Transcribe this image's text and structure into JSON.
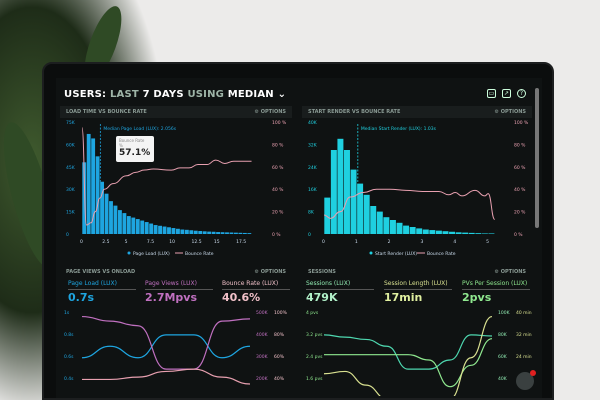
{
  "header": {
    "prefix": "USERS:",
    "mid1": "LAST",
    "days": "7 DAYS",
    "mid2": "USING",
    "method": "MEDIAN",
    "chevron": "chevron-down-icon"
  },
  "toolbar": {
    "icons": [
      "monitor-icon",
      "chart-icon",
      "help-icon"
    ]
  },
  "options_label": "OPTIONS",
  "colors": {
    "blue": "#1ea5e0",
    "cyan": "#1fd0e0",
    "pink": "#e8a0b0",
    "purple": "#c070c0",
    "green": "#8fe88f",
    "teal": "#4ed8b0",
    "yellow": "#d8e090"
  },
  "panel1": {
    "title": "LOAD TIME VS BOUNCE RATE",
    "median_label": "Median Page Load (LUX): 2.056s",
    "tooltip": {
      "label": "Bounce Rate",
      "sub": "%",
      "value": "57.1%"
    },
    "legend": [
      "Page Load (LUX)",
      "Bounce Rate"
    ]
  },
  "panel2": {
    "title": "START RENDER VS BOUNCE RATE",
    "median_label": "Median Start Render (LUX): 1.03s",
    "legend": [
      "Start Render (LUX)",
      "Bounce Rate"
    ]
  },
  "panel3": {
    "title": "PAGE VIEWS VS ONLOAD",
    "kpis": [
      {
        "label": "Page Load (LUX)",
        "value": "0.7s"
      },
      {
        "label": "Page Views (LUX)",
        "value": "2.7Mpvs"
      },
      {
        "label": "Bounce Rate (LUX)",
        "value": "40.6%"
      }
    ],
    "left_ticks": [
      "1s",
      "0.8s",
      "0.6s",
      "0.4s"
    ],
    "right_ticks_a": [
      "500K",
      "400K",
      "300K",
      "200K"
    ],
    "right_ticks_b": [
      "100%",
      "80%",
      "60%",
      "40%"
    ]
  },
  "panel4": {
    "title": "SESSIONS",
    "kpis": [
      {
        "label": "Sessions (LUX)",
        "value": "479K"
      },
      {
        "label": "Session Length (LUX)",
        "value": "17min"
      },
      {
        "label": "PVs Per Session (LUX)",
        "value": "2pvs"
      }
    ],
    "left_ticks": [
      "4 pvs",
      "3.2 pvs",
      "2.4 pvs",
      "1.6 pvs"
    ],
    "right_ticks_a": [
      "100K",
      "80K",
      "60K",
      "40K"
    ],
    "right_ticks_b": [
      "40 min",
      "32 min",
      "24 min",
      ""
    ]
  },
  "chart_data": [
    {
      "type": "bar",
      "title": "LOAD TIME VS BOUNCE RATE",
      "y_ticks": [
        "0",
        "15K",
        "30K",
        "45K",
        "60K",
        "75K"
      ],
      "y2_ticks": [
        "0 %",
        "20 %",
        "40 %",
        "60 %",
        "80 %",
        "100 %"
      ],
      "x_ticks": [
        "0",
        "2.5",
        "5",
        "7.5",
        "10",
        "12.5",
        "15",
        "17.5"
      ],
      "ylim": [
        0,
        75
      ],
      "y2lim": [
        0,
        100
      ],
      "xlim": [
        0,
        19.5
      ],
      "bin": 0.5,
      "series": [
        {
          "name": "Page Load (LUX)",
          "values": [
            48,
            67,
            64,
            52,
            35,
            27,
            22,
            19,
            16,
            14,
            12,
            11,
            10,
            9,
            8,
            7,
            6,
            5.5,
            5,
            4.5,
            4,
            3.5,
            3,
            2.8,
            2.5,
            2.2,
            2,
            1.8,
            1.6,
            1.5,
            1.3,
            1.2,
            1.1,
            1,
            0.9,
            0.8,
            0.7,
            0.6
          ]
        },
        {
          "name": "Bounce Rate",
          "points": [
            [
              0,
              95
            ],
            [
              0.5,
              8
            ],
            [
              1,
              10
            ],
            [
              1.5,
              20
            ],
            [
              2,
              32
            ],
            [
              2.5,
              40
            ],
            [
              3.5,
              45
            ],
            [
              5,
              52
            ],
            [
              6,
              55
            ],
            [
              7,
              57.1
            ],
            [
              8,
              58
            ],
            [
              10,
              57
            ],
            [
              11,
              59
            ],
            [
              12,
              59
            ],
            [
              13,
              62
            ],
            [
              14,
              62
            ],
            [
              15,
              66
            ],
            [
              16,
              63
            ],
            [
              17,
              65
            ],
            [
              18,
              65
            ],
            [
              19,
              65
            ]
          ]
        }
      ],
      "median": 2.056
    },
    {
      "type": "bar",
      "title": "START RENDER VS BOUNCE RATE",
      "y_ticks": [
        "0",
        "8K",
        "16K",
        "24K",
        "32K",
        "40K"
      ],
      "y2_ticks": [
        "0 %",
        "20 %",
        "40 %",
        "60 %",
        "80 %",
        "100 %"
      ],
      "x_ticks": [
        "0",
        "1",
        "2",
        "3",
        "4",
        "5"
      ],
      "ylim": [
        0,
        40
      ],
      "y2lim": [
        0,
        100
      ],
      "xlim": [
        0,
        5.3
      ],
      "bin": 0.2,
      "series": [
        {
          "name": "Start Render (LUX)",
          "values": [
            13,
            30,
            34,
            30,
            23,
            18,
            14,
            10,
            8,
            6,
            5,
            4,
            3,
            2.5,
            2,
            1.6,
            1.4,
            1.2,
            1,
            0.8,
            0.6,
            0.5,
            0.4,
            0.3,
            0.2,
            0.2
          ]
        },
        {
          "name": "Bounce Rate",
          "points": [
            [
              0,
              17
            ],
            [
              0.2,
              14
            ],
            [
              0.5,
              20
            ],
            [
              0.8,
              33
            ],
            [
              1.2,
              37
            ],
            [
              1.6,
              40
            ],
            [
              2,
              40
            ],
            [
              2.5,
              39
            ],
            [
              3,
              38
            ],
            [
              3.5,
              38
            ],
            [
              3.8,
              35
            ],
            [
              4,
              37
            ],
            [
              4.2,
              34
            ],
            [
              4.6,
              39
            ],
            [
              4.9,
              34
            ],
            [
              5,
              36
            ],
            [
              5.2,
              13
            ]
          ]
        }
      ],
      "median": 1.03
    },
    {
      "type": "line",
      "title": "PAGE VIEWS VS ONLOAD",
      "series": [
        {
          "name": "Page Load (LUX)",
          "axis": "s",
          "values": [
            0.6,
            0.7,
            0.6,
            0.8,
            0.8,
            0.6,
            0.7
          ],
          "ylim": [
            0.3,
            1
          ]
        },
        {
          "name": "Page Views (LUX)",
          "axis": "K",
          "values": [
            480,
            460,
            440,
            250,
            250,
            460,
            470
          ],
          "ylim": [
            150,
            500
          ]
        },
        {
          "name": "Bounce Rate (LUX)",
          "axis": "%",
          "values": [
            41,
            41,
            43,
            48,
            50,
            43,
            37
          ],
          "ylim": [
            30,
            100
          ]
        }
      ]
    },
    {
      "type": "line",
      "title": "SESSIONS",
      "series": [
        {
          "name": "Sessions (LUX)",
          "axis": "K",
          "values": [
            80,
            78,
            76,
            70,
            50,
            50,
            58,
            80,
            79
          ],
          "ylim": [
            30,
            100
          ]
        },
        {
          "name": "PVs Per Session (LUX)",
          "axis": "pvs",
          "values": [
            2.4,
            2.4,
            2.4,
            2.4,
            2.4,
            2.2,
            1.2,
            2.0,
            3.0
          ],
          "ylim": [
            1,
            4
          ]
        },
        {
          "name": "Session Length (LUX)",
          "axis": "min",
          "values": [
            13,
            14,
            8,
            2,
            2,
            2,
            2,
            20,
            38
          ],
          "ylim": [
            5,
            40
          ]
        }
      ]
    }
  ]
}
